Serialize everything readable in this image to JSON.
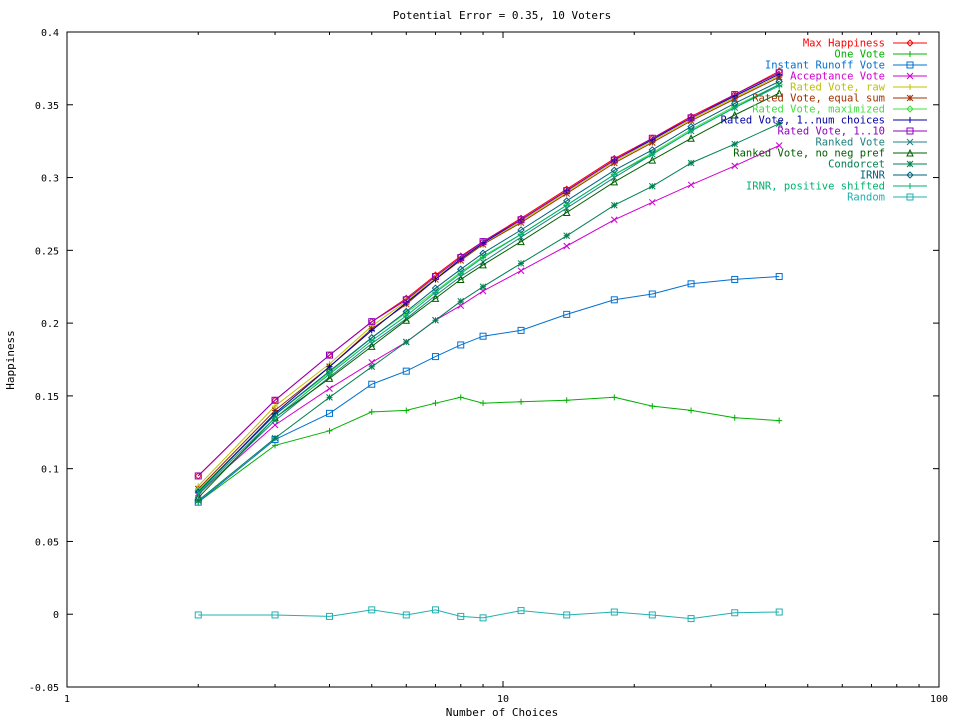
{
  "chart_data": {
    "type": "line",
    "title": "Potential Error = 0.35, 10 Voters",
    "xlabel": "Number of Choices",
    "ylabel": "Happiness",
    "xscale": "log",
    "xlim": [
      1,
      100
    ],
    "ylim": [
      -0.05,
      0.4
    ],
    "x_ticks": [
      "1",
      "10",
      "100"
    ],
    "y_ticks": [
      "-0.05",
      "0",
      "0.05",
      "0.1",
      "0.15",
      "0.2",
      "0.25",
      "0.3",
      "0.35",
      "0.4"
    ],
    "legend_position": "top-right",
    "grid": false,
    "x": [
      2,
      3,
      4,
      5,
      6,
      7,
      8,
      9,
      11,
      14,
      18,
      22,
      27,
      34,
      43
    ],
    "series": [
      {
        "name": "Max Happiness",
        "color": "#ff0000",
        "marker": "diamond",
        "values": [
          0.095,
          0.147,
          0.178,
          0.201,
          0.217,
          0.233,
          0.246,
          0.256,
          0.272,
          0.292,
          0.313,
          0.327,
          0.342,
          0.357,
          0.373
        ]
      },
      {
        "name": "One Vote",
        "color": "#00b000",
        "marker": "plus",
        "values": [
          0.077,
          0.116,
          0.126,
          0.139,
          0.14,
          0.145,
          0.149,
          0.145,
          0.146,
          0.147,
          0.149,
          0.143,
          0.14,
          0.135,
          0.133
        ]
      },
      {
        "name": "Instant Runoff Vote",
        "color": "#0070d0",
        "marker": "square",
        "values": [
          0.077,
          0.12,
          0.138,
          0.158,
          0.167,
          0.177,
          0.185,
          0.191,
          0.195,
          0.206,
          0.216,
          0.22,
          0.227,
          0.23,
          0.232
        ]
      },
      {
        "name": "Acceptance Vote",
        "color": "#d000d0",
        "marker": "x",
        "values": [
          0.083,
          0.13,
          0.155,
          0.173,
          0.187,
          0.202,
          0.212,
          0.222,
          0.236,
          0.253,
          0.271,
          0.283,
          0.295,
          0.308,
          0.322
        ]
      },
      {
        "name": "Rated Vote, raw",
        "color": "#c0c000",
        "marker": "plus",
        "values": [
          0.088,
          0.143,
          0.172,
          0.198,
          0.215,
          0.231,
          0.244,
          0.254,
          0.27,
          0.29,
          0.311,
          0.325,
          0.34,
          0.355,
          0.37
        ]
      },
      {
        "name": "Rated Vote, equal sum",
        "color": "#a03000",
        "marker": "star",
        "values": [
          0.086,
          0.14,
          0.17,
          0.196,
          0.213,
          0.23,
          0.243,
          0.254,
          0.269,
          0.289,
          0.31,
          0.324,
          0.339,
          0.354,
          0.369
        ]
      },
      {
        "name": "Rated Vote, maximized",
        "color": "#40e040",
        "marker": "diamond",
        "values": [
          0.085,
          0.137,
          0.166,
          0.19,
          0.207,
          0.222,
          0.235,
          0.246,
          0.261,
          0.281,
          0.302,
          0.317,
          0.333,
          0.349,
          0.364
        ]
      },
      {
        "name": "Rated Vote, 1..num choices",
        "color": "#0000a0",
        "marker": "plus",
        "values": [
          0.084,
          0.138,
          0.17,
          0.195,
          0.214,
          0.23,
          0.244,
          0.255,
          0.271,
          0.291,
          0.312,
          0.326,
          0.341,
          0.356,
          0.371
        ]
      },
      {
        "name": "Rated Vote, 1..10",
        "color": "#9000c0",
        "marker": "square",
        "values": [
          0.095,
          0.147,
          0.178,
          0.201,
          0.216,
          0.232,
          0.245,
          0.256,
          0.271,
          0.291,
          0.312,
          0.327,
          0.341,
          0.357,
          0.372
        ]
      },
      {
        "name": "Ranked Vote",
        "color": "#208080",
        "marker": "x",
        "values": [
          0.082,
          0.133,
          0.163,
          0.186,
          0.203,
          0.219,
          0.232,
          0.242,
          0.259,
          0.279,
          0.3,
          0.316,
          0.332,
          0.348,
          0.364
        ]
      },
      {
        "name": "Ranked Vote, no neg pref",
        "color": "#006000",
        "marker": "triangle",
        "values": [
          0.08,
          0.135,
          0.162,
          0.184,
          0.202,
          0.217,
          0.23,
          0.24,
          0.256,
          0.276,
          0.297,
          0.312,
          0.327,
          0.343,
          0.358
        ]
      },
      {
        "name": "Condorcet",
        "color": "#008050",
        "marker": "star",
        "values": [
          0.078,
          0.121,
          0.149,
          0.17,
          0.187,
          0.202,
          0.215,
          0.225,
          0.241,
          0.26,
          0.281,
          0.294,
          0.31,
          0.323,
          0.337
        ]
      },
      {
        "name": "IRNR",
        "color": "#006080",
        "marker": "diamond",
        "values": [
          0.084,
          0.137,
          0.167,
          0.19,
          0.208,
          0.224,
          0.237,
          0.248,
          0.264,
          0.284,
          0.305,
          0.319,
          0.335,
          0.351,
          0.366
        ]
      },
      {
        "name": "IRNR, positive shifted",
        "color": "#00b070",
        "marker": "plus",
        "values": [
          0.083,
          0.135,
          0.165,
          0.188,
          0.205,
          0.221,
          0.234,
          0.245,
          0.261,
          0.281,
          0.302,
          0.316,
          0.332,
          0.348,
          0.363
        ]
      },
      {
        "name": "Random",
        "color": "#20b0b0",
        "marker": "square",
        "values": [
          -0.0005,
          -0.0005,
          -0.0015,
          0.003,
          -0.0005,
          0.003,
          -0.0015,
          -0.0025,
          0.0025,
          -0.0005,
          0.0015,
          -0.0005,
          -0.003,
          0.001,
          0.0015
        ]
      }
    ]
  }
}
